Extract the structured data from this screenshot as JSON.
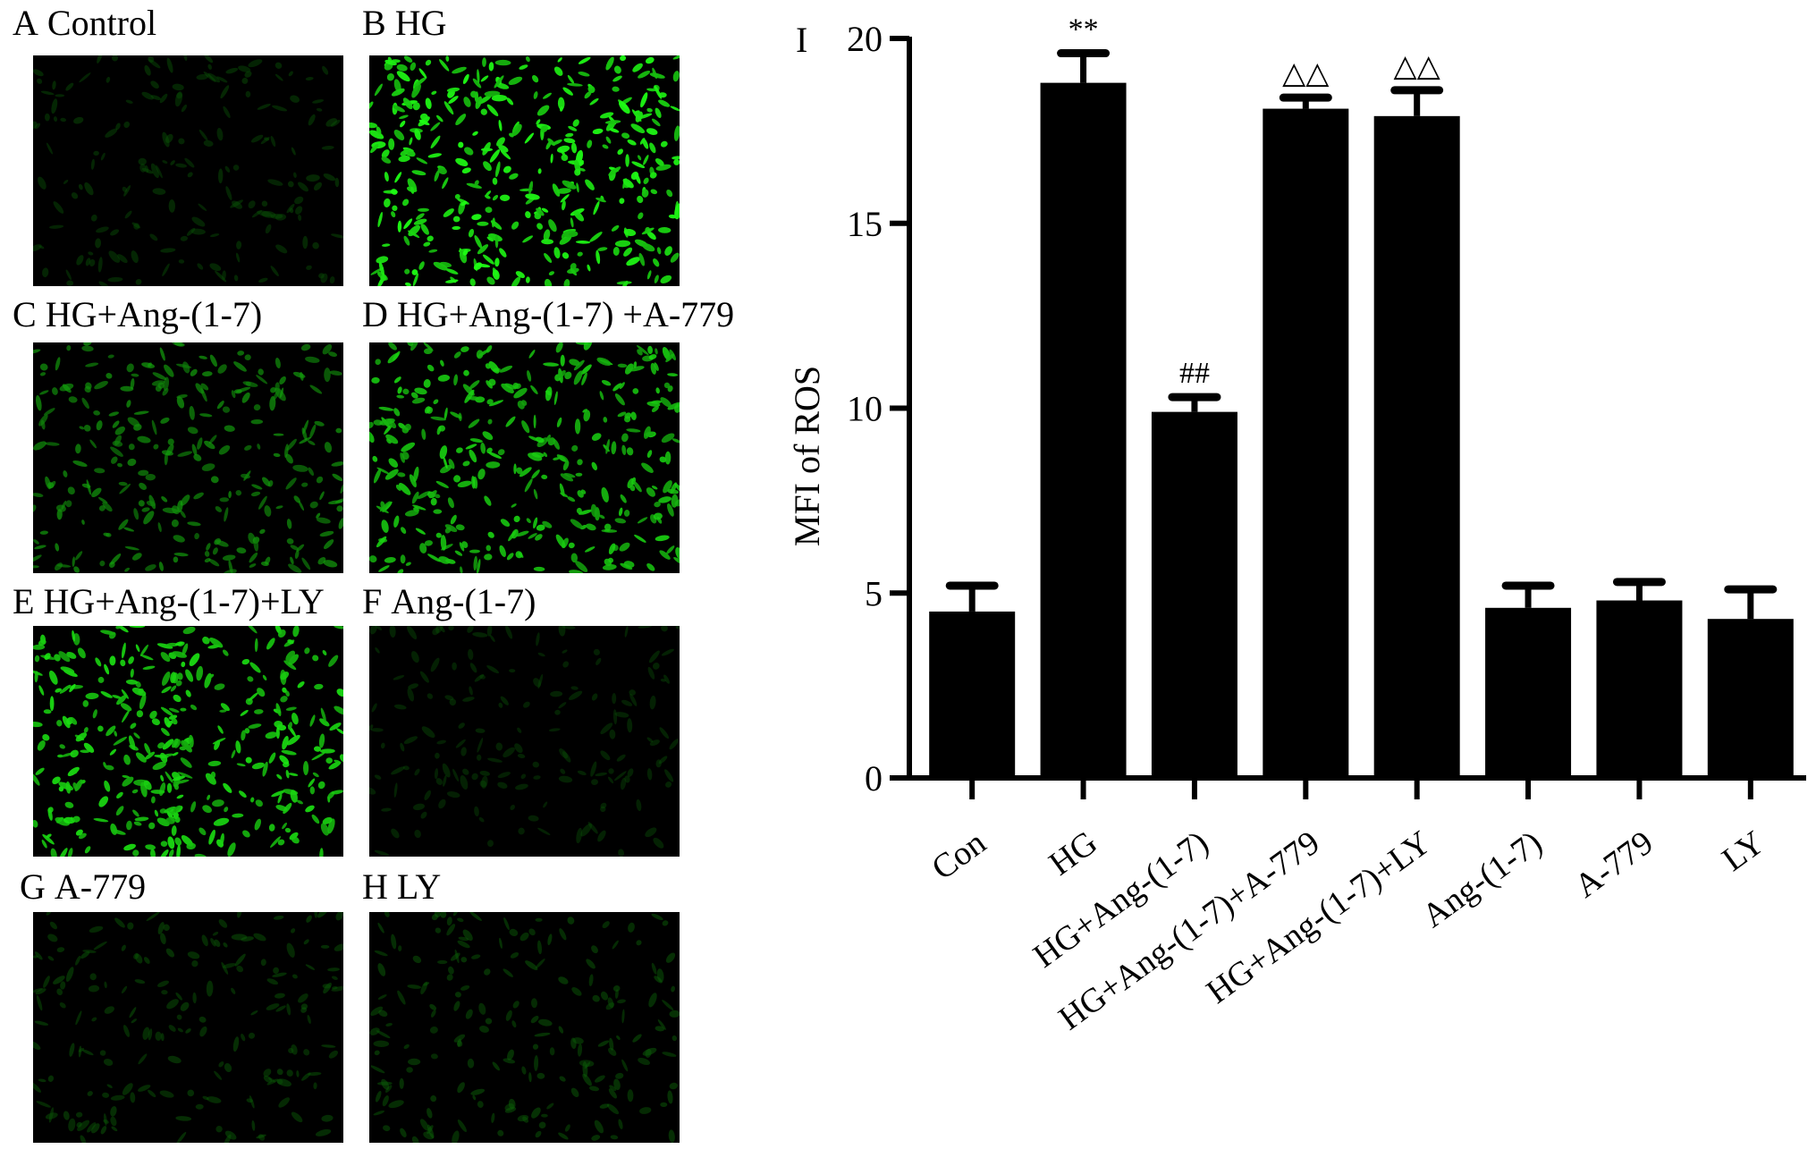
{
  "panels": [
    {
      "letter": "A",
      "label": "Control",
      "intensity": 0.15
    },
    {
      "letter": "B",
      "label": "HG",
      "intensity": 1.0
    },
    {
      "letter": "C",
      "label": "HG+Ang-(1-7)",
      "intensity": 0.55
    },
    {
      "letter": "D",
      "label": "HG+Ang-(1-7) +A-779",
      "intensity": 0.85
    },
    {
      "letter": "E",
      "label": "HG+Ang-(1-7)+LY",
      "intensity": 0.9
    },
    {
      "letter": "F",
      "label": "Ang-(1-7)",
      "intensity": 0.12
    },
    {
      "letter": "G",
      "label": "A-779",
      "intensity": 0.2
    },
    {
      "letter": "H",
      "label": "LY",
      "intensity": 0.22
    }
  ],
  "chart_data": {
    "type": "bar",
    "panel_letter": "I",
    "ylabel": "MFI of ROS",
    "xlabel": "",
    "ylim": [
      0,
      20
    ],
    "yticks": [
      0,
      5,
      10,
      15,
      20
    ],
    "categories": [
      "Con",
      "HG",
      "HG+Ang-(1-7)",
      "HG+Ang-(1-7)+A-779",
      "HG+Ang-(1-7)+LY",
      "Ang-(1-7)",
      "A-779",
      "LY"
    ],
    "values": [
      4.5,
      18.8,
      9.9,
      18.1,
      17.9,
      4.6,
      4.8,
      4.3
    ],
    "errors": [
      0.7,
      0.8,
      0.4,
      0.3,
      0.7,
      0.6,
      0.5,
      0.8
    ],
    "annotations": [
      "",
      "**",
      "##",
      "△△",
      "△△",
      "",
      "",
      ""
    ],
    "bar_color": "#000000",
    "grid": false
  }
}
